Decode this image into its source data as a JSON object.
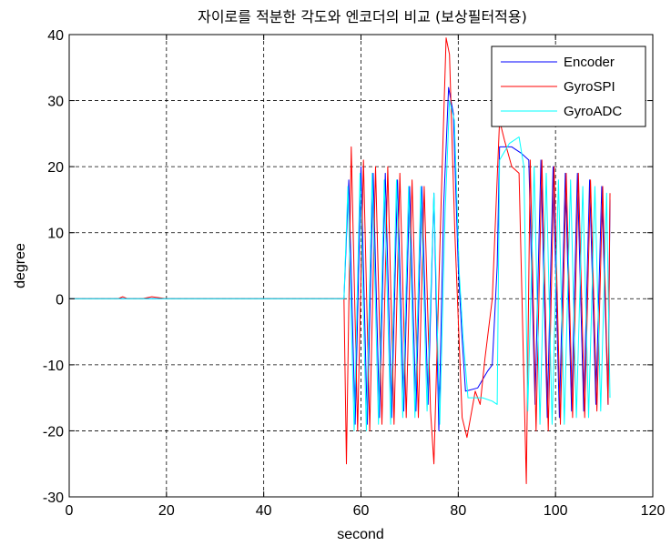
{
  "chart_data": {
    "type": "line",
    "title": "자이로를 적분한 각도와 엔코더의 비교 (보상필터적용)",
    "xlabel": "second",
    "ylabel": "degree",
    "xlim": [
      0,
      120
    ],
    "ylim": [
      -30,
      40
    ],
    "xticks": [
      0,
      20,
      40,
      60,
      80,
      100,
      120
    ],
    "yticks": [
      -30,
      -20,
      -10,
      0,
      10,
      20,
      30,
      40
    ],
    "grid": true,
    "legend_position": "top-right",
    "series": [
      {
        "name": "Encoder",
        "color": "#0000ff",
        "x": [
          0,
          56.5,
          57.5,
          58.8,
          60.0,
          61.3,
          62.5,
          63.8,
          65.0,
          66.3,
          67.5,
          68.8,
          70.0,
          71.3,
          72.5,
          73.8,
          75.0,
          76.0,
          77.0,
          78.0,
          79.0,
          80.0,
          80.7,
          81.5,
          84,
          86,
          87,
          88.0,
          88.5,
          91,
          93,
          94.5,
          95.8,
          97.0,
          98.3,
          99.5,
          100.8,
          102.0,
          103.3,
          104.5,
          105.8,
          107.0,
          108.3,
          109.5,
          110.8,
          111.2
        ],
        "y": [
          0,
          0,
          18,
          -19,
          20,
          -19,
          19,
          -18,
          19,
          -18,
          18,
          -17,
          17,
          -17,
          17,
          -16,
          16,
          -20,
          14,
          32,
          28,
          5,
          -5,
          -14,
          -13.5,
          -11,
          -10,
          5,
          23,
          23,
          22,
          21,
          -16,
          21,
          -18,
          20,
          -18,
          19,
          -17,
          19,
          -17,
          18,
          -16,
          17,
          -16,
          15
        ]
      },
      {
        "name": "GyroSPI",
        "color": "#ff0000",
        "x": [
          0,
          10,
          11,
          12,
          15,
          17,
          20,
          25,
          56.5,
          57.0,
          58.0,
          59.3,
          60.5,
          61.8,
          63.0,
          64.3,
          65.5,
          66.8,
          68.0,
          69.3,
          70.5,
          71.8,
          73.0,
          74.3,
          75.0,
          76.5,
          77.5,
          78.2,
          79.3,
          80.0,
          80.8,
          81.8,
          83.5,
          84.5,
          85.5,
          87.0,
          88.5,
          89.5,
          91.0,
          92.5,
          94.0,
          94.8,
          96.0,
          97.2,
          98.5,
          99.7,
          101.0,
          102.2,
          103.5,
          104.7,
          106.0,
          107.2,
          108.5,
          109.7,
          110.8,
          111.2
        ],
        "y": [
          0,
          0,
          0.3,
          0,
          0,
          0.3,
          0,
          0,
          0,
          -25,
          23,
          -20,
          21,
          -20,
          20,
          -19,
          20,
          -19,
          19,
          -18,
          18,
          -18,
          17,
          -17,
          -25,
          15,
          39.5,
          37,
          10,
          -3,
          -18,
          -21,
          -14,
          -16,
          -9,
          0,
          27,
          24,
          20,
          19,
          -28,
          21,
          -20,
          21,
          -20,
          20,
          -19,
          19,
          -18,
          19,
          -18,
          18,
          -17,
          17,
          -16,
          16
        ]
      },
      {
        "name": "GyroADC",
        "color": "#00ffff",
        "x": [
          0,
          56.5,
          57.3,
          58.6,
          59.8,
          61.1,
          62.3,
          63.6,
          64.8,
          66.1,
          67.3,
          68.6,
          69.8,
          71.1,
          72.3,
          73.6,
          75.0,
          76.2,
          77.3,
          78.2,
          79.2,
          80.2,
          81.0,
          82.0,
          85,
          87.0,
          88.0,
          88.5,
          90.5,
          92.5,
          93.5,
          94.3,
          95.6,
          96.8,
          98.1,
          99.3,
          100.6,
          101.8,
          103.1,
          104.3,
          105.6,
          106.8,
          108.1,
          109.3,
          110.5,
          111.2
        ],
        "y": [
          0,
          0,
          17,
          -20,
          19,
          -20,
          19,
          -19,
          18,
          -19,
          18,
          -18,
          17,
          -18,
          17,
          -17,
          16,
          -19,
          13,
          30,
          27,
          4,
          -6,
          -15,
          -15,
          -15.5,
          -16,
          21,
          23.5,
          24.5,
          20,
          -17,
          20,
          -19,
          19,
          -19,
          18,
          -19,
          18,
          -18,
          17,
          -18,
          17,
          -17,
          16,
          -15
        ]
      }
    ]
  }
}
